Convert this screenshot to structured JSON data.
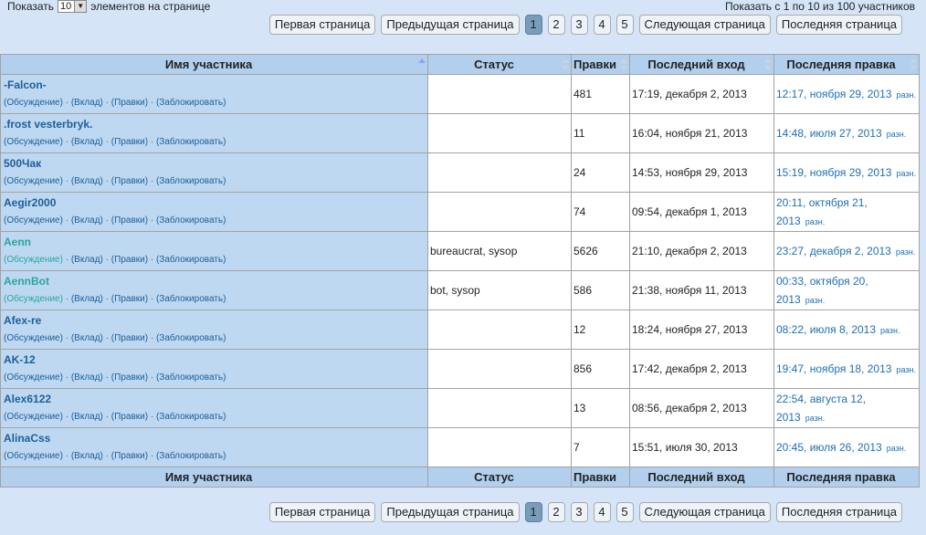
{
  "top": {
    "show_label": "Показать",
    "page_size": "10",
    "per_page_label": "элементов на странице",
    "summary": "Показать с 1 по 10 из 100 участников"
  },
  "pager": {
    "first": "Первая страница",
    "prev": "Предыдущая страница",
    "pages": [
      "1",
      "2",
      "3",
      "4",
      "5"
    ],
    "current": "1",
    "next": "Следующая страница",
    "last": "Последняя страница"
  },
  "columns": [
    "Имя участника",
    "Статус",
    "Правки",
    "Последний вход",
    "Последняя правка"
  ],
  "link_labels": {
    "talk": "(Обсуждение)",
    "contribs": "(Вклад)",
    "rights": "(Правки)",
    "block": "(Заблокировать)",
    "sep": "·",
    "diff": "разн."
  },
  "rows": [
    {
      "name": "-Falcon-",
      "status": "",
      "edits": "481",
      "last_login": "17:19, декабря 2, 2013",
      "last_edit": "12:17, ноября 29, 2013",
      "color": "#1d5f9a"
    },
    {
      "name": ".frost vesterbryk.",
      "status": "",
      "edits": "11",
      "last_login": "16:04, ноября 21, 2013",
      "last_edit": "14:48, июля 27, 2013",
      "color": "#1d5f9a"
    },
    {
      "name": "500Чак",
      "status": "",
      "edits": "24",
      "last_login": "14:53, ноября 29, 2013",
      "last_edit": "15:19, ноября 29, 2013",
      "color": "#1d5f9a"
    },
    {
      "name": "Aegir2000",
      "status": "",
      "edits": "74",
      "last_login": "09:54, декабря 1, 2013",
      "last_edit": "20:11, октября 21, 2013",
      "color": "#1d5f9a"
    },
    {
      "name": "Aenn",
      "status": "bureaucrat, sysop",
      "edits": "5626",
      "last_login": "21:10, декабря 2, 2013",
      "last_edit": "23:27, декабря 2, 2013",
      "color": "#2aa6a0"
    },
    {
      "name": "AennBot",
      "status": "bot, sysop",
      "edits": "586",
      "last_login": "21:38, ноября 11, 2013",
      "last_edit": "00:33, октября 20, 2013",
      "color": "#2aa6a0"
    },
    {
      "name": "Afex-re",
      "status": "",
      "edits": "12",
      "last_login": "18:24, ноября 27, 2013",
      "last_edit": "08:22, июля 8, 2013",
      "color": "#1d5f9a"
    },
    {
      "name": "AK-12",
      "status": "",
      "edits": "856",
      "last_login": "17:42, декабря 2, 2013",
      "last_edit": "19:47, ноября 18, 2013",
      "color": "#1d5f9a"
    },
    {
      "name": "Alex6122",
      "status": "",
      "edits": "13",
      "last_login": "08:56, декабря 2, 2013",
      "last_edit": "22:54, августа 12, 2013",
      "color": "#1d5f9a"
    },
    {
      "name": "AlinaCss",
      "status": "",
      "edits": "7",
      "last_login": "15:51, июля 30, 2013",
      "last_edit": "20:45, июля 26, 2013",
      "color": "#1d5f9a"
    }
  ]
}
